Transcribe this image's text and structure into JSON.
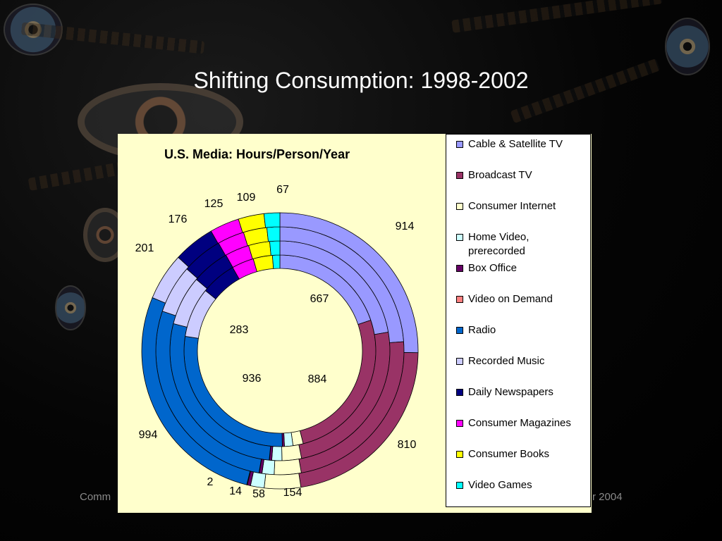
{
  "slide": {
    "title": "Shifting Consumption: 1998-2002",
    "footer_left": "Comm",
    "footer_right": "r 2004"
  },
  "chart_data": {
    "type": "pie",
    "title": "U.S. Media: Hours/Person/Year",
    "rings": 4,
    "categories": [
      "Cable & Satellite TV",
      "Broadcast TV",
      "Consumer Internet",
      "Home Video, prerecorded",
      "Box Office",
      "Video on Demand",
      "Radio",
      "Recorded Music",
      "Daily Newspapers",
      "Consumer Magazines",
      "Consumer Books",
      "Video Games"
    ],
    "colors": [
      "#9999ff",
      "#993366",
      "#ffffcc",
      "#ccffff",
      "#660066",
      "#ff8080",
      "#0066cc",
      "#ccccff",
      "#000080",
      "#ff00ff",
      "#ffff00",
      "#00ffff"
    ],
    "series": [
      {
        "values": [
          667,
          884,
          58,
          48,
          12,
          0,
          936,
          283,
          201,
          125,
          109,
          42
        ]
      },
      {
        "values": [
          780,
          860,
          100,
          52,
          12,
          1,
          960,
          255,
          195,
          125,
          109,
          52
        ]
      },
      {
        "values": [
          850,
          835,
          125,
          56,
          13,
          1,
          980,
          225,
          188,
          125,
          109,
          60
        ]
      },
      {
        "values": [
          914,
          810,
          154,
          58,
          14,
          2,
          994,
          201,
          176,
          125,
          109,
          67
        ]
      }
    ],
    "data_labels": [
      {
        "text": "914",
        "value": 914
      },
      {
        "text": "810",
        "value": 810
      },
      {
        "text": "154",
        "value": 154
      },
      {
        "text": "58",
        "value": 58
      },
      {
        "text": "14",
        "value": 14
      },
      {
        "text": "2",
        "value": 2
      },
      {
        "text": "994",
        "value": 994
      },
      {
        "text": "201",
        "value": 201
      },
      {
        "text": "176",
        "value": 176
      },
      {
        "text": "125",
        "value": 125
      },
      {
        "text": "109",
        "value": 109
      },
      {
        "text": "67",
        "value": 67
      },
      {
        "text": "667",
        "value": 667
      },
      {
        "text": "884",
        "value": 884
      },
      {
        "text": "936",
        "value": 936
      },
      {
        "text": "283",
        "value": 283
      }
    ],
    "legend_position": "right"
  }
}
